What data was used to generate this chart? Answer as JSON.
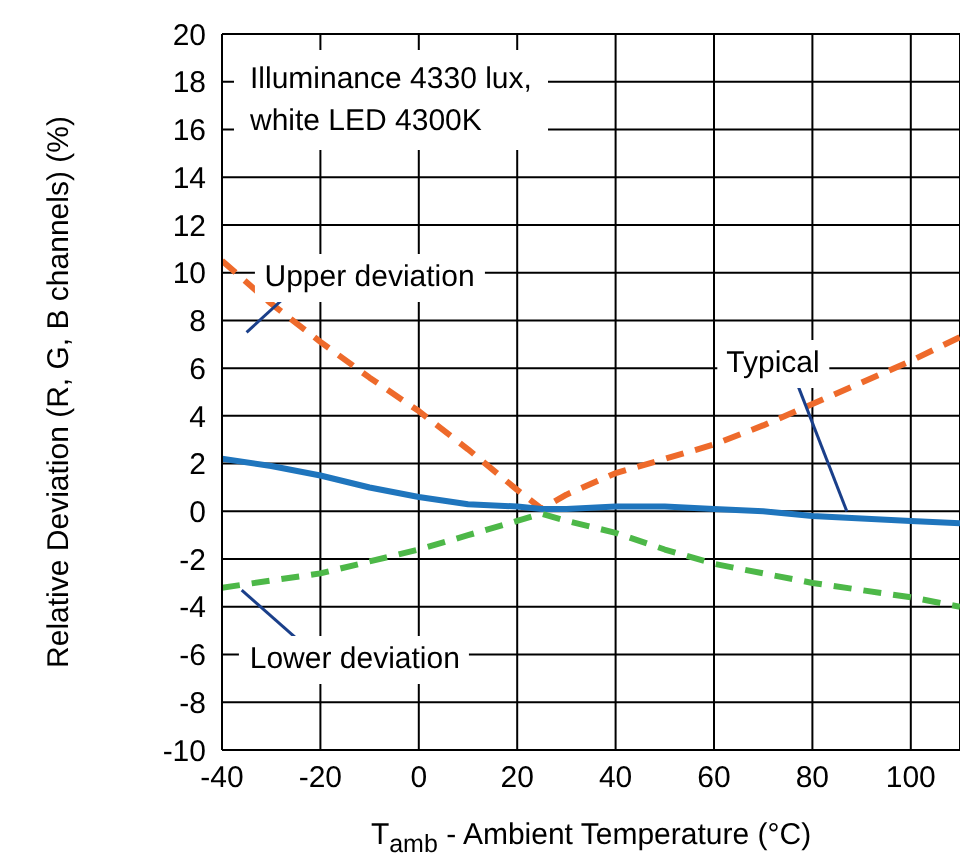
{
  "chart_data": {
    "type": "line",
    "xlabel": "T$_{amb}$ - Ambient Temperature (°C)",
    "ylabel": "Relative Deviation (R, G, B channels) (%)",
    "annotations": [
      "Illuminance 4330 lux,\nwhite LED 4300K"
    ],
    "x": [
      -40,
      -30,
      -20,
      -10,
      0,
      10,
      20,
      25,
      30,
      40,
      50,
      60,
      70,
      80,
      90,
      100,
      110
    ],
    "series": [
      {
        "name": "Upper deviation",
        "color": "#ee6a2b",
        "line_style": "dashed",
        "values": [
          10.5,
          8.7,
          7.1,
          5.6,
          4.2,
          2.6,
          0.9,
          0.1,
          0.7,
          1.6,
          2.2,
          2.8,
          3.6,
          4.5,
          5.4,
          6.3,
          7.3
        ]
      },
      {
        "name": "Typical",
        "color": "#1f75bd",
        "line_style": "solid",
        "values": [
          2.2,
          1.9,
          1.5,
          1.0,
          0.6,
          0.3,
          0.2,
          0.1,
          0.1,
          0.2,
          0.2,
          0.1,
          0.0,
          -0.2,
          -0.3,
          -0.4,
          -0.5
        ]
      },
      {
        "name": "Lower deviation",
        "color": "#4db848",
        "line_style": "dashed",
        "values": [
          -3.2,
          -2.9,
          -2.6,
          -2.1,
          -1.6,
          -1.0,
          -0.4,
          -0.1,
          -0.4,
          -0.9,
          -1.6,
          -2.2,
          -2.6,
          -3.0,
          -3.3,
          -3.6,
          -4.0
        ]
      }
    ],
    "xlim": [
      -40,
      110
    ],
    "xticks": [
      -40,
      -20,
      0,
      20,
      40,
      60,
      80,
      100,
      {
        "value": 110,
        "label": null
      }
    ],
    "ylim": [
      -10,
      20
    ],
    "yticks": [
      -10,
      -8,
      -6,
      -4,
      -2,
      0,
      2,
      4,
      6,
      8,
      10,
      12,
      14,
      16,
      18,
      20
    ],
    "grid": true,
    "legend": false,
    "marker": "none"
  }
}
